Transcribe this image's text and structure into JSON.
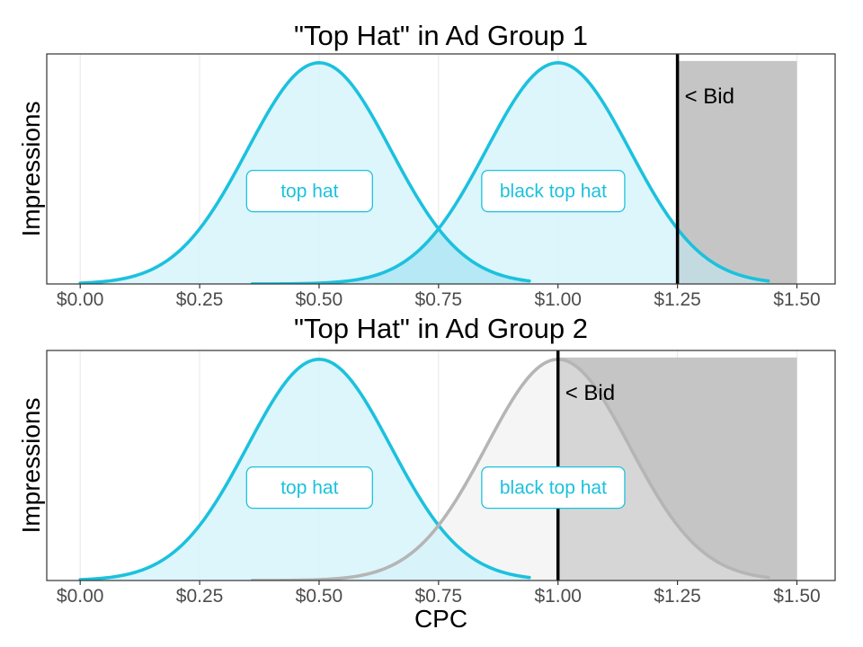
{
  "colors": {
    "active": "#1cc1dd",
    "active_fill": "#d6f4fb",
    "overlap_fill": "#a8e3f2",
    "inactive": "#b5b5b5",
    "inactive_fill": "#f2f2f2",
    "bid_region": "#d9d9d9",
    "bid_line": "#000000",
    "grid": "#ebebeb",
    "panel_border": "#333333"
  },
  "chart_data": [
    {
      "type": "area",
      "title": "\"Top Hat\" in Ad Group 1",
      "ylabel": "Impressions",
      "xlabel": "",
      "xlim": [
        -0.07,
        1.58
      ],
      "ylim": [
        0,
        1.04
      ],
      "x_ticks": [
        0,
        0.25,
        0.5,
        0.75,
        1.0,
        1.25,
        1.5
      ],
      "x_tick_labels": [
        "$0.00",
        "$0.25",
        "$0.50",
        "$0.75",
        "$1.00",
        "$1.25",
        "$1.50"
      ],
      "grid": true,
      "bid": 1.25,
      "bid_label": "< Bid",
      "bid_region": [
        1.25,
        1.5
      ],
      "series": [
        {
          "name": "top hat",
          "mean": 0.5,
          "sd": 0.15,
          "x_range": [
            0.0,
            0.94
          ],
          "state": "active",
          "label_pos": [
            0.48,
            0.42
          ]
        },
        {
          "name": "black top hat",
          "mean": 1.0,
          "sd": 0.15,
          "x_range": [
            0.36,
            1.44
          ],
          "state": "active",
          "label_pos": [
            0.99,
            0.42
          ]
        }
      ]
    },
    {
      "type": "area",
      "title": "\"Top Hat\" in Ad Group 2",
      "ylabel": "Impressions",
      "xlabel": "CPC",
      "xlim": [
        -0.07,
        1.58
      ],
      "ylim": [
        0,
        1.04
      ],
      "x_ticks": [
        0,
        0.25,
        0.5,
        0.75,
        1.0,
        1.25,
        1.5
      ],
      "x_tick_labels": [
        "$0.00",
        "$0.25",
        "$0.50",
        "$0.75",
        "$1.00",
        "$1.25",
        "$1.50"
      ],
      "grid": true,
      "bid": 1.0,
      "bid_label": "< Bid",
      "bid_region": [
        1.0,
        1.5
      ],
      "series": [
        {
          "name": "top hat",
          "mean": 0.5,
          "sd": 0.15,
          "x_range": [
            0.0,
            0.94
          ],
          "state": "active",
          "label_pos": [
            0.48,
            0.42
          ]
        },
        {
          "name": "black top hat",
          "mean": 1.0,
          "sd": 0.15,
          "x_range": [
            0.36,
            1.44
          ],
          "state": "inactive",
          "label_pos": [
            0.99,
            0.42
          ]
        }
      ]
    }
  ]
}
